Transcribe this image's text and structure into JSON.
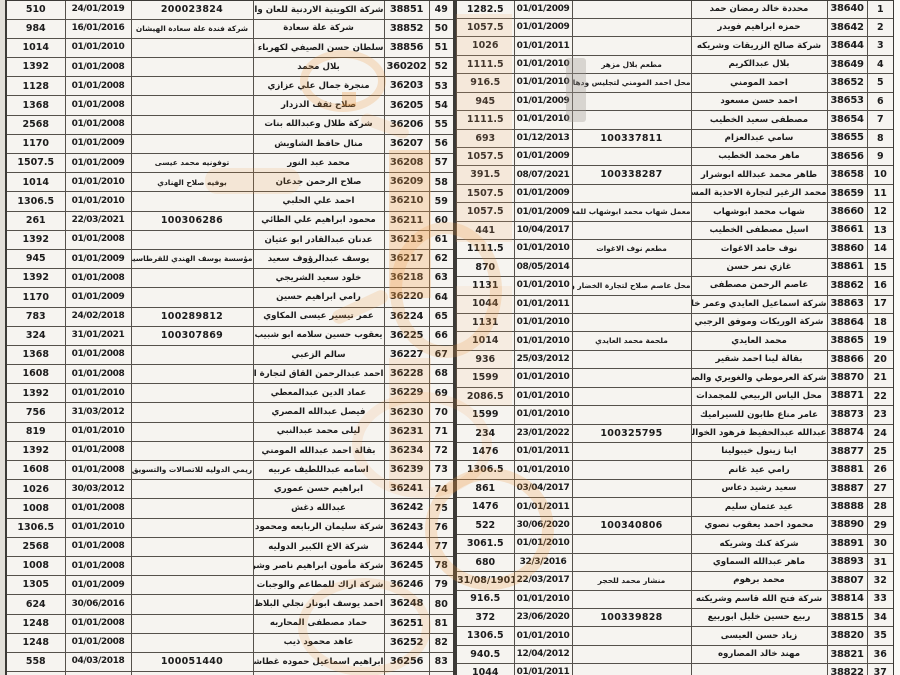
{
  "document": {
    "kind": "scanned-fees-register",
    "language": "ar",
    "columns": [
      "serial",
      "registration_no",
      "owner_name",
      "trade_name_or_license",
      "date",
      "amount"
    ]
  },
  "colors": {
    "paper": "#f6f4f0",
    "ink": "#1c1c1c",
    "border": "#55514b",
    "watermark_orange": "#ec963c"
  },
  "tables": {
    "right": {
      "rows": [
        [
          "1",
          "38640",
          "محددة خالد رمضان حمد",
          "",
          "01/01/2009",
          "1282.5"
        ],
        [
          "2",
          "38642",
          "حمزه ابراهيم فويدر",
          "",
          "01/01/2009",
          "1057.5"
        ],
        [
          "3",
          "38644",
          "شركة صالح الزريقات وشريكه",
          "",
          "01/01/2011",
          "1026"
        ],
        [
          "4",
          "38649",
          "بلال عبدالكريم",
          "مطعم بلال مزهر",
          "01/01/2010",
          "1111.5"
        ],
        [
          "5",
          "38652",
          "احمد المومني",
          "محل احمد المومني لتجليس ودهان السيارات",
          "01/01/2010",
          "916.5"
        ],
        [
          "6",
          "38653",
          "احمد حسن مسعود",
          "",
          "01/01/2009",
          "945"
        ],
        [
          "7",
          "38654",
          "مصطفى سعيد الخطيب",
          "",
          "01/01/2010",
          "1111.5"
        ],
        [
          "8",
          "38655",
          "سامي عبدالعزام",
          "100337811",
          "01/12/2013",
          "693"
        ],
        [
          "9",
          "38656",
          "ماهر محمد الخطيب",
          "",
          "01/01/2009",
          "1057.5"
        ],
        [
          "10",
          "38658",
          "طاهر محمد عبدالله ابوشرار",
          "100338287",
          "08/07/2021",
          "391.5"
        ],
        [
          "11",
          "38659",
          "محمد الزغير لتجارة الاحذية المستعمله",
          "",
          "01/01/2009",
          "1507.5"
        ],
        [
          "12",
          "38660",
          "شهاب محمد ابوشهاب",
          "معمل شهاب محمد ابوشهاب للمعسل",
          "01/01/2009",
          "1057.5"
        ],
        [
          "13",
          "38661",
          "اسيل مصطفى الخطيب",
          "",
          "10/04/2017",
          "441"
        ],
        [
          "14",
          "38860",
          "نوف حامد الاغوات",
          "مطعم نوف الاغوات",
          "01/01/2010",
          "1111.5"
        ],
        [
          "15",
          "38861",
          "غازي نمر حسن",
          "",
          "08/05/2014",
          "870"
        ],
        [
          "16",
          "38862",
          "عاصم الرحمن مصطفى",
          "محل عاصم صلاح لتجارة الخضار والفواكه",
          "01/01/2010",
          "1131"
        ],
        [
          "17",
          "38863",
          "شركة اسماعيل العايدي وعمر خليل",
          "",
          "01/01/2011",
          "1044"
        ],
        [
          "18",
          "38864",
          "شركة الوريكات وموفق الرجبي",
          "",
          "01/01/2010",
          "1131"
        ],
        [
          "19",
          "38865",
          "محمد العايدي",
          "ملحمة محمد العايدي",
          "01/01/2010",
          "1014"
        ],
        [
          "20",
          "38866",
          "بقالة لينا احمد شقير",
          "",
          "25/03/2012",
          "936"
        ],
        [
          "21",
          "38870",
          "شركة العرموطي والغويري والصوالحه",
          "",
          "01/01/2010",
          "1599"
        ],
        [
          "22",
          "38871",
          "محل الياس الربيعي للمجمدات",
          "",
          "01/01/2010",
          "2086.5"
        ],
        [
          "23",
          "38873",
          "عامر مناع طابون للسيراميك",
          "",
          "01/01/2010",
          "1599"
        ],
        [
          "24",
          "38874",
          "عبدالله عبدالحفيظ فرهود الخوالده",
          "100325795",
          "23/01/2022",
          "234"
        ],
        [
          "25",
          "38877",
          "اينا زينول خيبولينا",
          "",
          "01/01/2011",
          "1476"
        ],
        [
          "26",
          "38881",
          "رامي عيد غانم",
          "",
          "01/01/2010",
          "1306.5"
        ],
        [
          "27",
          "38887",
          "سعيد رشيد دعاس",
          "",
          "03/04/2017",
          "861"
        ],
        [
          "28",
          "38888",
          "عيد عثمان سليم",
          "",
          "01/01/2011",
          "1476"
        ],
        [
          "29",
          "38890",
          "محمود احمد يعقوب نصوي",
          "100340806",
          "30/06/2020",
          "522"
        ],
        [
          "30",
          "38891",
          "شركة كنك وشريكه",
          "",
          "01/01/2010",
          "3061.5"
        ],
        [
          "31",
          "38893",
          "ماهر عبدالله السماوي",
          "",
          "32/3/2016",
          "680"
        ],
        [
          "32",
          "38807",
          "محمد برهوم",
          "منشار محمد للحجر",
          "22/03/2017",
          "31/08/1901"
        ],
        [
          "33",
          "38814",
          "شركة فتح الله قاسم وشريكته",
          "",
          "01/01/2010",
          "916.5"
        ],
        [
          "34",
          "38815",
          "ربيع حسين خليل ابوربيع",
          "100339828",
          "23/06/2020",
          "372"
        ],
        [
          "35",
          "38820",
          "زياد حسن العيسى",
          "",
          "01/01/2010",
          "1306.5"
        ],
        [
          "36",
          "38821",
          "مهند خالد المصاروه",
          "",
          "12/04/2012",
          "940.5"
        ],
        [
          "37",
          "38822",
          "",
          "",
          "01/01/2011",
          "1044"
        ]
      ]
    },
    "left": {
      "rows": [
        [
          "49",
          "38851",
          "شركة الكويتية الاردنية للعان والنشر",
          "200023824",
          "24/01/2019",
          "510"
        ],
        [
          "50",
          "38852",
          "شركة علة سعادة",
          "شركة فندة علة سعادة الهيشان",
          "16/01/2016",
          "984"
        ],
        [
          "51",
          "38856",
          "سلطان حسن الصيفي لكهرباء السيارات",
          "",
          "01/01/2010",
          "1014"
        ],
        [
          "52",
          "360202",
          "بلال محمد",
          "",
          "01/01/2008",
          "1392"
        ],
        [
          "53",
          "36203",
          "منجرة جمال علي عزازي",
          "",
          "01/01/2008",
          "1128"
        ],
        [
          "54",
          "36205",
          "صلاح ثقف الدزدار",
          "",
          "01/01/2008",
          "1368"
        ],
        [
          "55",
          "36206",
          "شركة طلال وعبدالله بنات",
          "",
          "01/01/2008",
          "2568"
        ],
        [
          "56",
          "36207",
          "منال حافظ الشاويش",
          "",
          "01/01/2009",
          "1170"
        ],
        [
          "57",
          "36208",
          "محمد عبد النور",
          "توفونيه محمد عيسى",
          "01/01/2009",
          "1507.5"
        ],
        [
          "58",
          "36209",
          "صلاح الرحمن جدعان",
          "بوفيه صلاح الهنادي",
          "01/01/2010",
          "1014"
        ],
        [
          "59",
          "36210",
          "احمد علي الحلبي",
          "",
          "01/01/2010",
          "1306.5"
        ],
        [
          "60",
          "36211",
          "محمود ابراهيم علي الطائي",
          "100306286",
          "22/03/2021",
          "261"
        ],
        [
          "61",
          "36213",
          "عدنان عبدالقادر ابو عثيان",
          "",
          "01/01/2008",
          "1392"
        ],
        [
          "62",
          "36217",
          "يوسف عبدالرؤوف سعيد",
          "مؤسسة يوسف الهندي للقرطاسيه",
          "01/01/2009",
          "945"
        ],
        [
          "63",
          "36218",
          "خلود سعيد الشريجي",
          "",
          "01/01/2008",
          "1392"
        ],
        [
          "64",
          "36220",
          "رامي ابراهيم حسين",
          "",
          "01/01/2009",
          "1170"
        ],
        [
          "65",
          "36224",
          "عمر تيسير عيسى المكاوي",
          "100289812",
          "24/02/2018",
          "783"
        ],
        [
          "66",
          "36225",
          "يعقوب حسين سلامه ابو شبيب",
          "100307869",
          "31/01/2021",
          "324"
        ],
        [
          "67",
          "36227",
          "سالم الزعبي",
          "",
          "01/01/2008",
          "1368"
        ],
        [
          "68",
          "36228",
          "احمد عبدالرحمن القاق لتجارة النظارات",
          "",
          "01/01/2008",
          "1608"
        ],
        [
          "69",
          "36229",
          "عماد الدين عبدالمعطي",
          "",
          "01/01/2010",
          "1392"
        ],
        [
          "70",
          "36230",
          "فيصل عبدالله المصري",
          "",
          "31/03/2012",
          "756"
        ],
        [
          "71",
          "36231",
          "ليلى محمد عبدالنبي",
          "",
          "01/01/2010",
          "819"
        ],
        [
          "72",
          "36234",
          "بقالة احمد عبدالله المومني",
          "",
          "01/01/2008",
          "1392"
        ],
        [
          "73",
          "36239",
          "اسامه عبداللطيف عربيه",
          "ريمي الدوليه للاتصالات والتسويق",
          "01/01/2008",
          "1608"
        ],
        [
          "74",
          "36241",
          "ابراهيم حسن عموري",
          "",
          "30/03/2012",
          "1026"
        ],
        [
          "75",
          "36242",
          "عبدالله دغش",
          "",
          "01/01/2008",
          "1008"
        ],
        [
          "76",
          "36243",
          "شركة سليمان الربابعه ومحمود الباش",
          "",
          "01/01/2010",
          "1306.5"
        ],
        [
          "77",
          "36244",
          "شركة الاخ الكبير الدوليه",
          "",
          "01/01/2008",
          "2568"
        ],
        [
          "78",
          "36245",
          "شركة مأمون ابراهيم ناصر وشريكه",
          "",
          "01/01/2008",
          "1008"
        ],
        [
          "79",
          "36246",
          "شركة اراك للمطاعم والوجبات السريعه",
          "",
          "01/01/2009",
          "1305"
        ],
        [
          "80",
          "36248",
          "احمد يوسف ابونار نجلي البلاظ",
          "",
          "30/06/2016",
          "624"
        ],
        [
          "81",
          "36251",
          "حماد مصطفى المحاربه",
          "",
          "01/01/2008",
          "1248"
        ],
        [
          "82",
          "36252",
          "عاهد محمود ذيب",
          "",
          "01/01/2008",
          "1248"
        ],
        [
          "83",
          "36256",
          "ابراهيم اسماعيل حموده غطاشه",
          "100051440",
          "04/03/2018",
          "558"
        ],
        [
          "84",
          "36257",
          "",
          "",
          "08/08/2012",
          "936"
        ]
      ]
    }
  }
}
